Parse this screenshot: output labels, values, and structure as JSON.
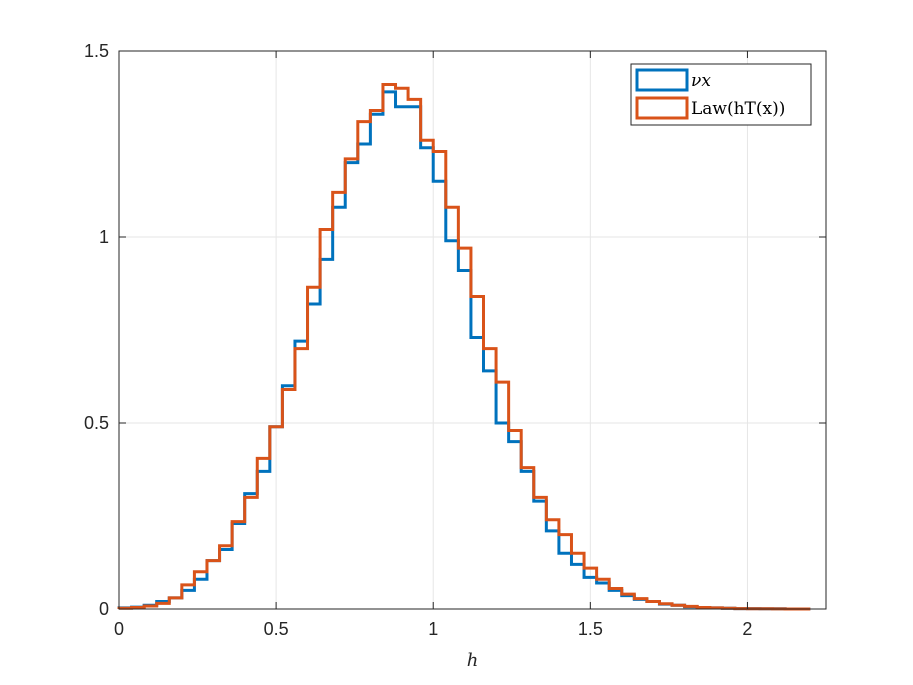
{
  "chart_data": {
    "type": "histogram-stairs",
    "title": "",
    "xlabel": "h",
    "ylabel": "",
    "xlim": [
      0,
      2.25
    ],
    "ylim": [
      0,
      1.5
    ],
    "xticks": [
      0,
      0.5,
      1,
      1.5,
      2
    ],
    "xtick_labels": [
      "0",
      "0.5",
      "1",
      "1.5",
      "2"
    ],
    "yticks": [
      0,
      0.5,
      1,
      1.5
    ],
    "ytick_labels": [
      "0",
      "0.5",
      "1",
      "1.5"
    ],
    "grid": true,
    "legend_position": "top-right",
    "legend_entries": [
      "νx",
      "Law(hT(x))"
    ],
    "series": [
      {
        "name": "νx",
        "color": "#0072BD",
        "edges": [
          0.0,
          0.04,
          0.08,
          0.12,
          0.16,
          0.2,
          0.24,
          0.28,
          0.32,
          0.36,
          0.4,
          0.44,
          0.48,
          0.52,
          0.56,
          0.6,
          0.64,
          0.68,
          0.72,
          0.76,
          0.8,
          0.84,
          0.88,
          0.92,
          0.96,
          1.0,
          1.04,
          1.08,
          1.12,
          1.16,
          1.2,
          1.24,
          1.28,
          1.32,
          1.36,
          1.4,
          1.44,
          1.48,
          1.52,
          1.56,
          1.6,
          1.64,
          1.68,
          1.72,
          1.76,
          1.8,
          1.84,
          1.88,
          1.92,
          1.96,
          2.0,
          2.04,
          2.08,
          2.12,
          2.16
        ],
        "values": [
          0.003,
          0.005,
          0.01,
          0.02,
          0.03,
          0.05,
          0.08,
          0.13,
          0.16,
          0.23,
          0.31,
          0.37,
          0.49,
          0.6,
          0.72,
          0.82,
          0.94,
          1.08,
          1.2,
          1.25,
          1.33,
          1.39,
          1.35,
          1.35,
          1.24,
          1.15,
          0.99,
          0.91,
          0.73,
          0.64,
          0.5,
          0.45,
          0.37,
          0.29,
          0.21,
          0.15,
          0.12,
          0.085,
          0.07,
          0.05,
          0.036,
          0.026,
          0.02,
          0.013,
          0.01,
          0.006,
          0.004,
          0.003,
          0.002,
          0.001,
          0.001,
          0.0005,
          0.0005,
          0.0
        ]
      },
      {
        "name": "Law(hT(x))",
        "color": "#D95319",
        "edges": [
          0.0,
          0.04,
          0.08,
          0.12,
          0.16,
          0.2,
          0.24,
          0.28,
          0.32,
          0.36,
          0.4,
          0.44,
          0.48,
          0.52,
          0.56,
          0.6,
          0.64,
          0.68,
          0.72,
          0.76,
          0.8,
          0.84,
          0.88,
          0.92,
          0.96,
          1.0,
          1.04,
          1.08,
          1.12,
          1.16,
          1.2,
          1.24,
          1.28,
          1.32,
          1.36,
          1.4,
          1.44,
          1.48,
          1.52,
          1.56,
          1.6,
          1.64,
          1.68,
          1.72,
          1.76,
          1.8,
          1.84,
          1.88,
          1.92,
          1.96,
          2.0,
          2.04,
          2.08,
          2.12,
          2.16
        ],
        "values": [
          0.002,
          0.004,
          0.008,
          0.015,
          0.03,
          0.065,
          0.1,
          0.13,
          0.17,
          0.235,
          0.3,
          0.405,
          0.49,
          0.59,
          0.7,
          0.865,
          1.02,
          1.12,
          1.21,
          1.31,
          1.34,
          1.41,
          1.4,
          1.37,
          1.26,
          1.23,
          1.08,
          0.97,
          0.84,
          0.7,
          0.61,
          0.48,
          0.38,
          0.3,
          0.24,
          0.2,
          0.15,
          0.11,
          0.08,
          0.055,
          0.04,
          0.028,
          0.02,
          0.014,
          0.01,
          0.007,
          0.004,
          0.003,
          0.002,
          0.001,
          0.0005,
          0.0005,
          0.0003,
          0.0
        ]
      }
    ]
  }
}
